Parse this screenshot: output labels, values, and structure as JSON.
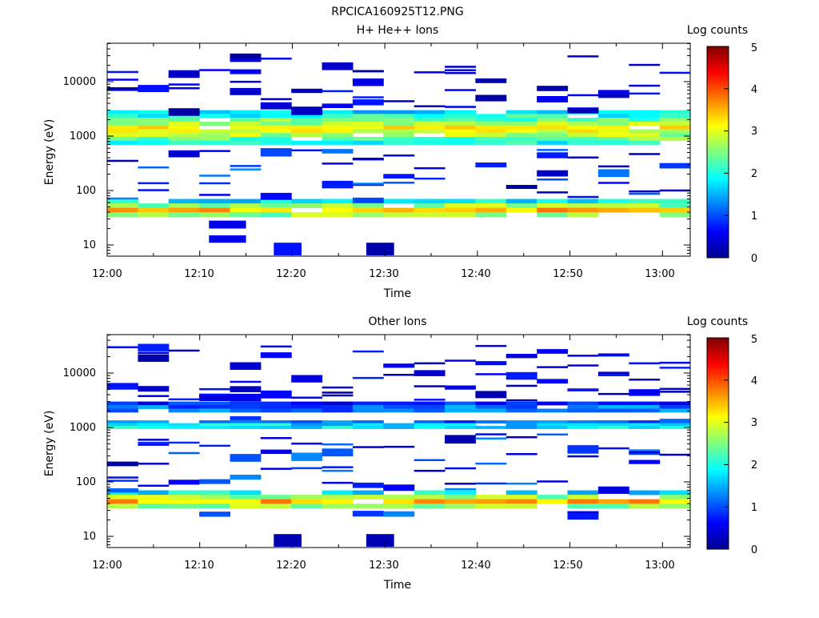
{
  "figure_title": "RPCICA160925T12.PNG",
  "chart_data": [
    {
      "type": "heatmap",
      "title": "H+ He++ Ions",
      "xlabel": "Time",
      "ylabel": "Energy (eV)",
      "xlim": [
        "12:00",
        "13:03"
      ],
      "ylim": [
        6,
        45000
      ],
      "yscale": "log",
      "x_ticks": [
        "12:00",
        "12:10",
        "12:20",
        "12:30",
        "12:40",
        "12:50",
        "13:00"
      ],
      "y_ticks": [
        "10",
        "100",
        "1000",
        "10000"
      ],
      "colorbar": {
        "label": "Log counts",
        "min": 0,
        "max": 5,
        "ticks": [
          "0",
          "1",
          "2",
          "3",
          "4",
          "5"
        ]
      },
      "grid": false,
      "bands": [
        {
          "energy_low": 700,
          "energy_high": 3000,
          "level": 2.8
        },
        {
          "energy_low": 33,
          "energy_high": 70,
          "level": 3.0
        }
      ],
      "cells": [
        {
          "t_start": "12:18",
          "t_end": "12:21",
          "energy_low": 6,
          "energy_high": 11,
          "level": 0.7
        },
        {
          "t_start": "12:28",
          "t_end": "12:31",
          "energy_low": 6,
          "energy_high": 11,
          "level": 0.15
        },
        {
          "t_start": "12:11",
          "t_end": "12:15",
          "energy_low": 11,
          "energy_high": 15,
          "level": 0.5
        },
        {
          "t_start": "12:11",
          "t_end": "12:15",
          "energy_low": 20,
          "energy_high": 28,
          "level": 0.5
        }
      ]
    },
    {
      "type": "heatmap",
      "title": "Other Ions",
      "xlabel": "Time",
      "ylabel": "Energy (eV)",
      "xlim": [
        "12:00",
        "13:03"
      ],
      "ylim": [
        6,
        45000
      ],
      "yscale": "log",
      "x_ticks": [
        "12:00",
        "12:10",
        "12:20",
        "12:30",
        "12:40",
        "12:50",
        "13:00"
      ],
      "y_ticks": [
        "10",
        "100",
        "1000",
        "10000"
      ],
      "colorbar": {
        "label": "Log counts",
        "min": 0,
        "max": 5,
        "ticks": [
          "0",
          "1",
          "2",
          "3",
          "4",
          "5"
        ]
      },
      "grid": false,
      "bands": [
        {
          "energy_low": 950,
          "energy_high": 1350,
          "level": 1.8
        },
        {
          "energy_low": 1900,
          "energy_high": 3000,
          "level": 1.2
        },
        {
          "energy_low": 33,
          "energy_high": 70,
          "level": 3.0
        }
      ],
      "cells": [
        {
          "t_start": "12:18",
          "t_end": "12:21",
          "energy_low": 6,
          "energy_high": 11,
          "level": 0.2
        },
        {
          "t_start": "12:28",
          "t_end": "12:31",
          "energy_low": 6,
          "energy_high": 11,
          "level": 0.2
        }
      ]
    }
  ]
}
